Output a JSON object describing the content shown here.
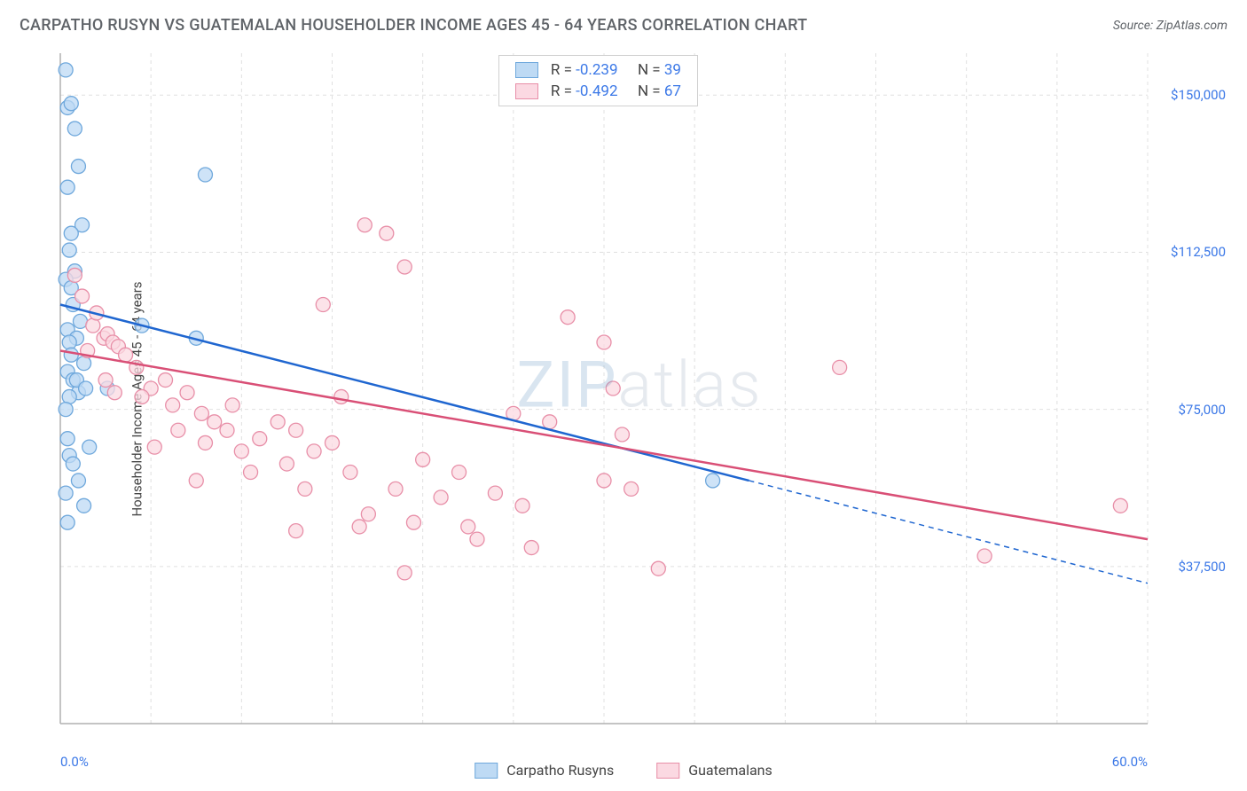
{
  "title": "CARPATHO RUSYN VS GUATEMALAN HOUSEHOLDER INCOME AGES 45 - 64 YEARS CORRELATION CHART",
  "source": "Source: ZipAtlas.com",
  "watermark_bold": "ZIP",
  "watermark_thin": "atlas",
  "y_axis_label": "Householder Income Ages 45 - 64 years",
  "chart": {
    "type": "scatter",
    "background_color": "#ffffff",
    "grid_color": "#e0e0e0",
    "axis_color": "#b0b0b0",
    "xlim": [
      0,
      60
    ],
    "ylim": [
      0,
      160000
    ],
    "x_ticks": [
      {
        "pos": 0,
        "label": "0.0%"
      },
      {
        "pos": 60,
        "label": "60.0%"
      }
    ],
    "x_gridlines": [
      0,
      5,
      10,
      15,
      20,
      25,
      30,
      35,
      40,
      45,
      50,
      55,
      60
    ],
    "y_ticks": [
      {
        "pos": 37500,
        "label": "$37,500"
      },
      {
        "pos": 75000,
        "label": "$75,000"
      },
      {
        "pos": 112500,
        "label": "$112,500"
      },
      {
        "pos": 150000,
        "label": "$150,000"
      }
    ],
    "series": [
      {
        "key": "carpatho",
        "label": "Carpatho Rusyns",
        "marker_fill": "#bedaf4",
        "marker_stroke": "#6fa8dc",
        "marker_radius": 8,
        "line_color": "#1f66d0",
        "line_width": 2.5,
        "r": "-0.239",
        "n": "39",
        "trend": {
          "x1": 0,
          "y1": 100000,
          "x2": 38,
          "y2": 58000
        },
        "trend_ext": {
          "x1": 38,
          "y1": 58000,
          "x2": 60,
          "y2": 33500
        },
        "points": [
          [
            0.3,
            156000
          ],
          [
            0.4,
            147000
          ],
          [
            0.6,
            148000
          ],
          [
            0.8,
            142000
          ],
          [
            1.0,
            133000
          ],
          [
            0.4,
            128000
          ],
          [
            1.2,
            119000
          ],
          [
            0.6,
            117000
          ],
          [
            0.5,
            113000
          ],
          [
            0.8,
            108000
          ],
          [
            0.3,
            106000
          ],
          [
            0.6,
            104000
          ],
          [
            0.7,
            100000
          ],
          [
            1.1,
            96000
          ],
          [
            0.4,
            94000
          ],
          [
            0.9,
            92000
          ],
          [
            0.5,
            91000
          ],
          [
            0.6,
            88000
          ],
          [
            1.3,
            86000
          ],
          [
            0.4,
            84000
          ],
          [
            0.7,
            82000
          ],
          [
            1.0,
            79000
          ],
          [
            0.5,
            78000
          ],
          [
            0.3,
            75000
          ],
          [
            0.9,
            82000
          ],
          [
            1.4,
            80000
          ],
          [
            2.6,
            80000
          ],
          [
            0.4,
            68000
          ],
          [
            1.6,
            66000
          ],
          [
            0.5,
            64000
          ],
          [
            0.7,
            62000
          ],
          [
            1.0,
            58000
          ],
          [
            0.3,
            55000
          ],
          [
            1.3,
            52000
          ],
          [
            0.4,
            48000
          ],
          [
            8.0,
            131000
          ],
          [
            4.5,
            95000
          ],
          [
            7.5,
            92000
          ],
          [
            36,
            58000
          ]
        ]
      },
      {
        "key": "guatemalan",
        "label": "Guatemalans",
        "marker_fill": "#fbd9e2",
        "marker_stroke": "#e88fa8",
        "marker_radius": 8,
        "line_color": "#d94f76",
        "line_width": 2.5,
        "r": "-0.492",
        "n": "67",
        "trend": {
          "x1": 0,
          "y1": 89000,
          "x2": 60,
          "y2": 44000
        },
        "points": [
          [
            0.8,
            107000
          ],
          [
            1.2,
            102000
          ],
          [
            1.8,
            95000
          ],
          [
            2.0,
            98000
          ],
          [
            2.4,
            92000
          ],
          [
            2.6,
            93000
          ],
          [
            2.9,
            91000
          ],
          [
            3.2,
            90000
          ],
          [
            3.6,
            88000
          ],
          [
            2.5,
            82000
          ],
          [
            1.5,
            89000
          ],
          [
            4.2,
            85000
          ],
          [
            5.0,
            80000
          ],
          [
            4.5,
            78000
          ],
          [
            3.0,
            79000
          ],
          [
            5.8,
            82000
          ],
          [
            6.2,
            76000
          ],
          [
            7.0,
            79000
          ],
          [
            7.8,
            74000
          ],
          [
            6.5,
            70000
          ],
          [
            8.5,
            72000
          ],
          [
            8.0,
            67000
          ],
          [
            9.2,
            70000
          ],
          [
            10.0,
            65000
          ],
          [
            9.5,
            76000
          ],
          [
            11.0,
            68000
          ],
          [
            10.5,
            60000
          ],
          [
            12.0,
            72000
          ],
          [
            12.5,
            62000
          ],
          [
            13.0,
            70000
          ],
          [
            14.0,
            65000
          ],
          [
            13.5,
            56000
          ],
          [
            15.5,
            78000
          ],
          [
            15.0,
            67000
          ],
          [
            16.0,
            60000
          ],
          [
            16.5,
            47000
          ],
          [
            17.0,
            50000
          ],
          [
            18.5,
            56000
          ],
          [
            19.5,
            48000
          ],
          [
            20.0,
            63000
          ],
          [
            21.0,
            54000
          ],
          [
            19.0,
            36000
          ],
          [
            22.0,
            60000
          ],
          [
            22.5,
            47000
          ],
          [
            23.0,
            44000
          ],
          [
            24.0,
            55000
          ],
          [
            25.0,
            74000
          ],
          [
            25.5,
            52000
          ],
          [
            26.0,
            42000
          ],
          [
            14.5,
            100000
          ],
          [
            16.8,
            119000
          ],
          [
            18.0,
            117000
          ],
          [
            19.0,
            109000
          ],
          [
            28.0,
            97000
          ],
          [
            30.0,
            91000
          ],
          [
            27.0,
            72000
          ],
          [
            30.5,
            80000
          ],
          [
            31.0,
            69000
          ],
          [
            31.5,
            56000
          ],
          [
            33.0,
            37000
          ],
          [
            30.0,
            58000
          ],
          [
            43.0,
            85000
          ],
          [
            51.0,
            40000
          ],
          [
            58.5,
            52000
          ],
          [
            13.0,
            46000
          ],
          [
            7.5,
            58000
          ],
          [
            5.2,
            66000
          ]
        ]
      }
    ]
  },
  "legend": [
    {
      "label": "Carpatho Rusyns",
      "fill": "#bedaf4",
      "stroke": "#6fa8dc"
    },
    {
      "label": "Guatemalans",
      "fill": "#fbd9e2",
      "stroke": "#e88fa8"
    }
  ]
}
